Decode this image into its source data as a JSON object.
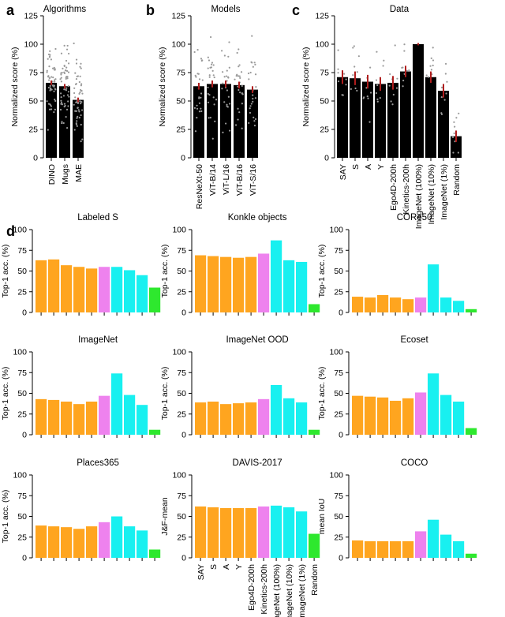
{
  "panel_labels": [
    "a",
    "b",
    "c",
    "d"
  ],
  "colors": {
    "bar_black": "#000000",
    "error_red": "#b01e1e",
    "dots_gray": "#9a9a9a",
    "orange": "#ffa51f",
    "violet": "#ee82ee",
    "cyan": "#18f0f0",
    "green": "#2ee82e",
    "axis": "#000000"
  },
  "chart_data": [
    {
      "id": "a",
      "type": "bar",
      "title": "Algorithms",
      "ylabel": "Normalized score (%)",
      "ylim": [
        0,
        125
      ],
      "yticks": [
        0,
        25,
        50,
        75,
        100,
        125
      ],
      "categories": [
        "DINO",
        "Mugs",
        "MAE"
      ],
      "values": [
        66,
        63,
        51
      ],
      "errors": [
        2,
        2,
        2
      ],
      "point_range": [
        8,
        118
      ]
    },
    {
      "id": "b",
      "type": "bar",
      "title": "Models",
      "ylabel": "Normalized score (%)",
      "ylim": [
        0,
        125
      ],
      "yticks": [
        0,
        25,
        50,
        75,
        100,
        125
      ],
      "categories": [
        "ResNeXt-50",
        "ViT-B/14",
        "ViT-L/16",
        "ViT-B/16",
        "ViT-S/16"
      ],
      "values": [
        63,
        65,
        65,
        64,
        60
      ],
      "errors": [
        3,
        3,
        3,
        3,
        3
      ],
      "point_range": [
        20,
        118
      ]
    },
    {
      "id": "c",
      "type": "bar",
      "title": "Data",
      "ylabel": "Normalized score (%)",
      "ylim": [
        0,
        125
      ],
      "yticks": [
        0,
        25,
        50,
        75,
        100,
        125
      ],
      "categories": [
        "SAY",
        "S",
        "A",
        "Y",
        "Ego4D-200h",
        "Kinetics-200h",
        "ImageNet (100%)",
        "ImageNet (10%)",
        "ImageNet (1%)",
        "Random"
      ],
      "values": [
        71,
        70,
        67,
        65,
        66,
        76,
        100,
        71,
        59,
        19
      ],
      "errors": [
        6,
        6,
        6,
        6,
        6,
        5,
        1,
        5,
        6,
        5
      ],
      "point_range": [
        15,
        118
      ]
    },
    {
      "id": "d",
      "type": "bar",
      "categories": [
        "SAY",
        "S",
        "A",
        "Y",
        "Ego4D-200h",
        "Kinetics-200h",
        "ImageNet (100%)",
        "ImageNet (10%)",
        "ImageNet (1%)",
        "Random"
      ],
      "bar_groups": [
        "orange",
        "orange",
        "orange",
        "orange",
        "orange",
        "violet",
        "cyan",
        "cyan",
        "cyan",
        "green"
      ],
      "ylim": [
        0,
        100
      ],
      "yticks": [
        0,
        25,
        50,
        75,
        100
      ],
      "subplots": [
        {
          "title": "Labeled S",
          "ylabel": "Top-1 acc. (%)",
          "values": [
            63,
            64,
            57,
            55,
            53,
            55,
            55,
            51,
            45,
            30
          ]
        },
        {
          "title": "Konkle objects",
          "ylabel": "Top-1 acc. (%)",
          "values": [
            69,
            68,
            67,
            66,
            67,
            71,
            87,
            63,
            61,
            10
          ]
        },
        {
          "title": "CORe50",
          "ylabel": "Top-1 acc. (%)",
          "values": [
            19,
            18,
            21,
            18,
            16,
            18,
            58,
            18,
            14,
            4
          ]
        },
        {
          "title": "ImageNet",
          "ylabel": "Top-1 acc. (%)",
          "values": [
            43,
            42,
            40,
            37,
            40,
            47,
            74,
            48,
            36,
            6
          ]
        },
        {
          "title": "ImageNet OOD",
          "ylabel": "Top-1 acc. (%)",
          "values": [
            39,
            40,
            37,
            38,
            39,
            43,
            60,
            44,
            39,
            6
          ]
        },
        {
          "title": "Ecoset",
          "ylabel": "Top-1 acc. (%)",
          "values": [
            47,
            46,
            45,
            41,
            44,
            51,
            74,
            48,
            40,
            8
          ]
        },
        {
          "title": "Places365",
          "ylabel": "Top-1 acc. (%)",
          "values": [
            39,
            38,
            37,
            35,
            38,
            43,
            50,
            38,
            33,
            10
          ]
        },
        {
          "title": "DAVIS-2017",
          "ylabel": "J&F-mean",
          "values": [
            62,
            61,
            60,
            60,
            60,
            62,
            63,
            61,
            56,
            29
          ]
        },
        {
          "title": "COCO",
          "ylabel": "mean IoU",
          "values": [
            21,
            20,
            20,
            20,
            20,
            32,
            46,
            28,
            20,
            5
          ]
        }
      ]
    }
  ]
}
